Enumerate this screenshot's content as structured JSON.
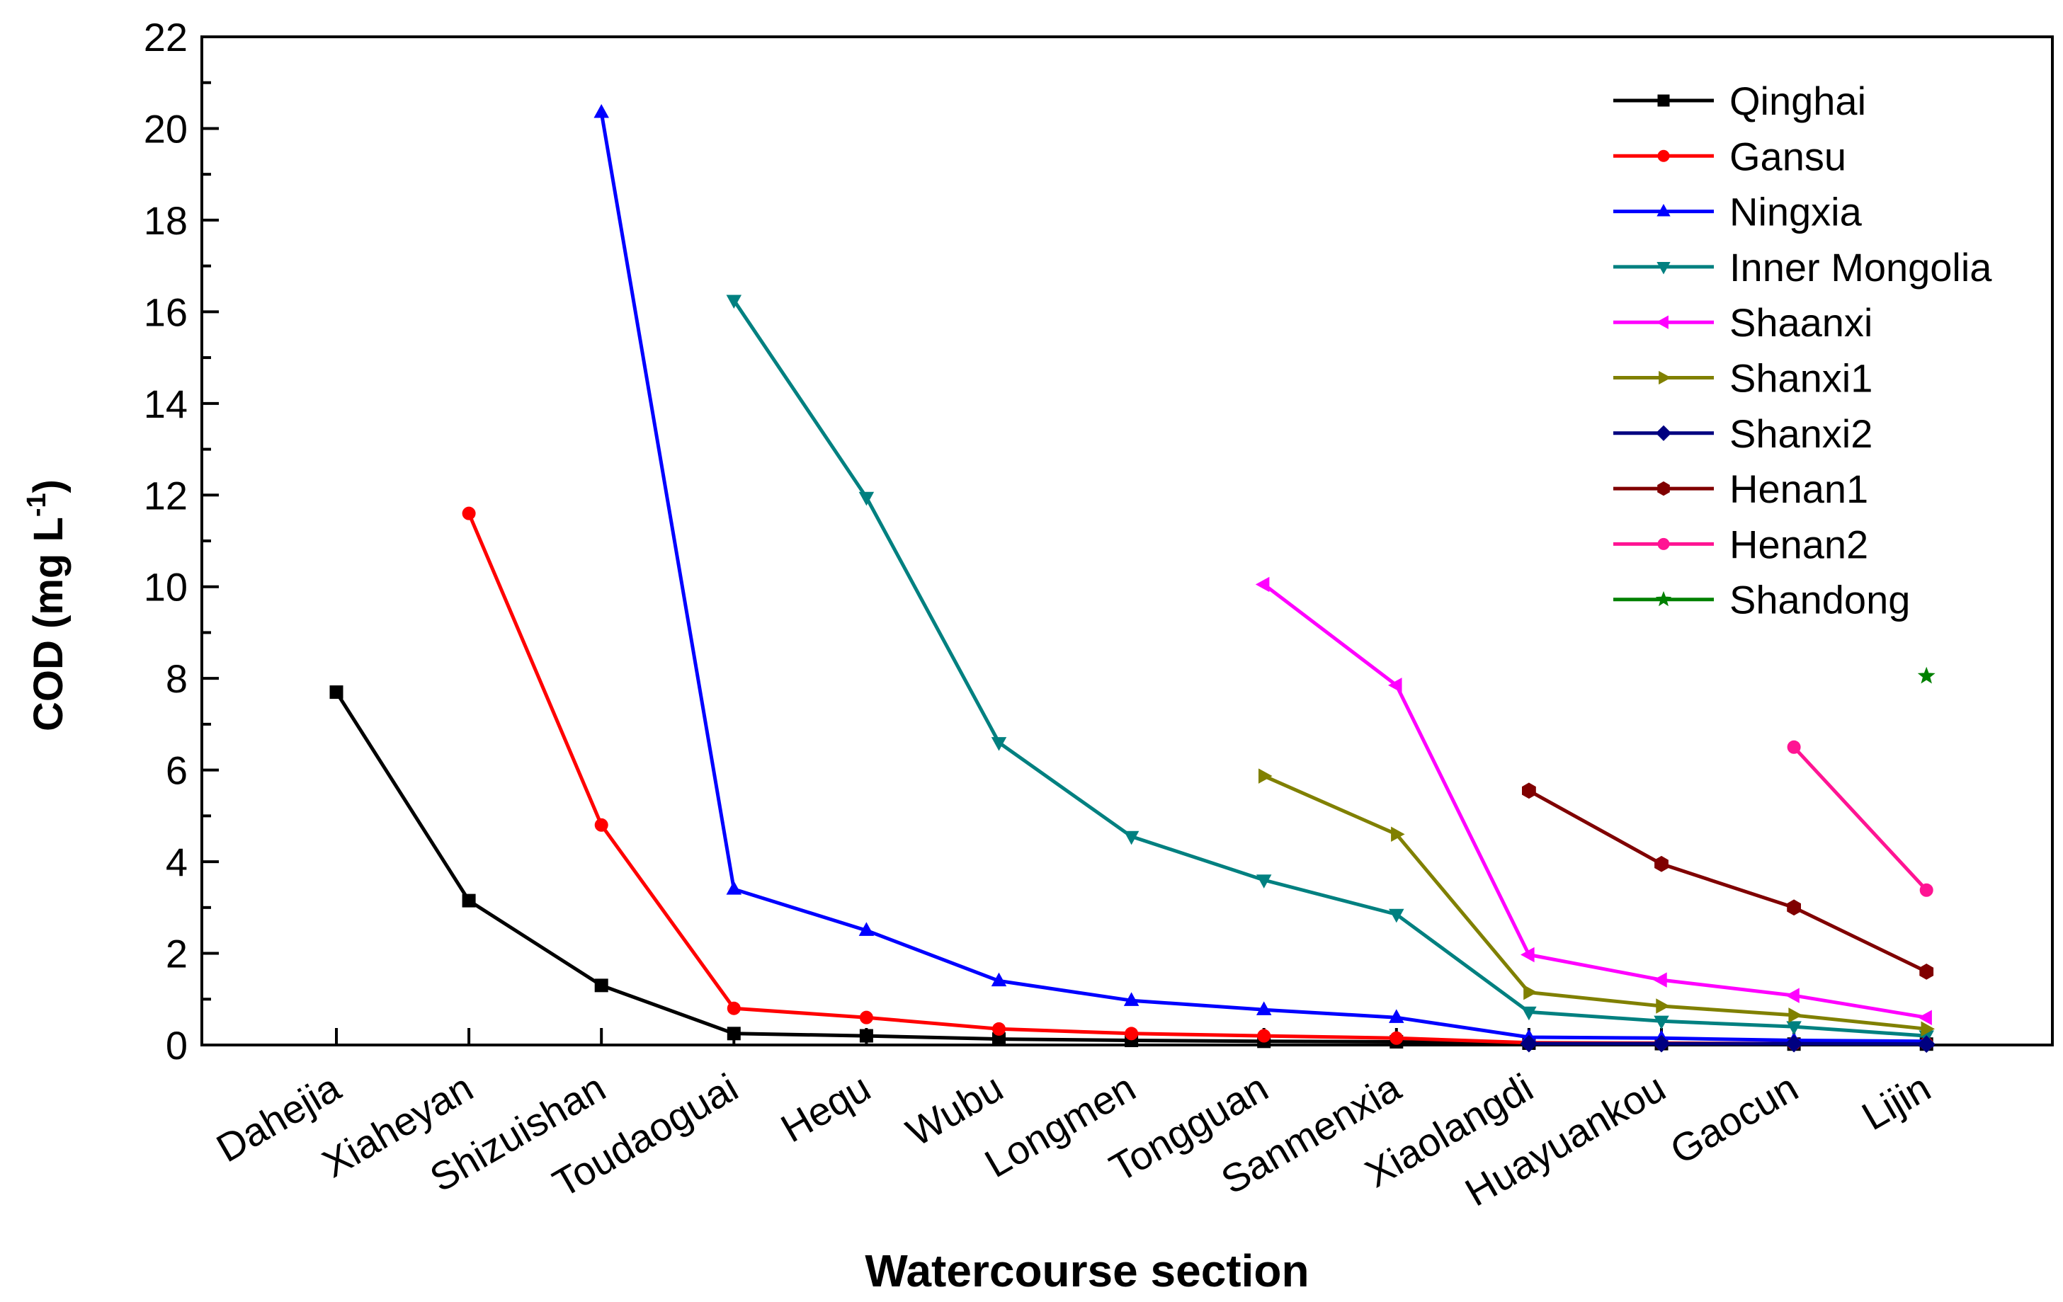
{
  "chart_data": {
    "type": "line",
    "title": "",
    "xlabel": "Watercourse section",
    "ylabel_main": "COD (mg L",
    "ylabel_sup": "-1",
    "ylabel_close": ")",
    "ylim": [
      0,
      22
    ],
    "yticks": [
      0,
      2,
      4,
      6,
      8,
      10,
      12,
      14,
      16,
      18,
      20,
      22
    ],
    "ytick_labels": [
      "0",
      "2",
      "4",
      "6",
      "8",
      "10",
      "12",
      "14",
      "16",
      "18",
      "20",
      "22"
    ],
    "grid": false,
    "legend_position": "top-right",
    "categories": [
      "Dahejia",
      "Xiaheyan",
      "Shizuishan",
      "Toudaoguai",
      "Hequ",
      "Wubu",
      "Longmen",
      "Tongguan",
      "Sanmenxia",
      "Xiaolangdi",
      "Huayuankou",
      "Gaocun",
      "Lijin"
    ],
    "series": [
      {
        "name": "Qinghai",
        "color": "#000000",
        "marker": "square",
        "values": [
          7.7,
          3.15,
          1.3,
          0.25,
          0.2,
          0.13,
          0.1,
          0.08,
          0.07,
          0.04,
          0.03,
          0.02,
          0.02
        ]
      },
      {
        "name": "Gansu",
        "color": "#ff0000",
        "marker": "circle",
        "values": [
          null,
          11.6,
          4.8,
          0.8,
          0.6,
          0.35,
          0.25,
          0.2,
          0.15,
          0.05,
          0.04,
          0.03,
          0.03
        ]
      },
      {
        "name": "Ningxia",
        "color": "#0000ff",
        "marker": "triangle-up",
        "values": [
          null,
          null,
          20.35,
          3.4,
          2.5,
          1.4,
          0.97,
          0.77,
          0.6,
          0.17,
          0.15,
          0.1,
          0.08
        ]
      },
      {
        "name": "Inner Mongolia",
        "color": "#008080",
        "marker": "triangle-down",
        "values": [
          null,
          null,
          null,
          16.25,
          11.95,
          6.6,
          4.55,
          3.6,
          2.85,
          0.72,
          0.52,
          0.4,
          0.2
        ]
      },
      {
        "name": "Shaanxi",
        "color": "#ff00ff",
        "marker": "triangle-left",
        "values": [
          null,
          null,
          null,
          null,
          null,
          null,
          null,
          10.05,
          7.85,
          1.97,
          1.42,
          1.08,
          0.6
        ]
      },
      {
        "name": "Shanxi1",
        "color": "#808000",
        "marker": "triangle-right",
        "values": [
          null,
          null,
          null,
          null,
          null,
          null,
          null,
          5.87,
          4.6,
          1.15,
          0.85,
          0.65,
          0.35
        ]
      },
      {
        "name": "Shanxi2",
        "color": "#000080",
        "marker": "diamond",
        "values": [
          null,
          null,
          null,
          null,
          null,
          null,
          null,
          null,
          null,
          0.03,
          0.03,
          0.03,
          0.02
        ]
      },
      {
        "name": "Henan1",
        "color": "#800000",
        "marker": "hexagon",
        "values": [
          null,
          null,
          null,
          null,
          null,
          null,
          null,
          null,
          null,
          5.55,
          3.95,
          3.0,
          1.6
        ]
      },
      {
        "name": "Henan2",
        "color": "#ff1493",
        "marker": "circle",
        "values": [
          null,
          null,
          null,
          null,
          null,
          null,
          null,
          null,
          null,
          null,
          null,
          6.5,
          3.38
        ]
      },
      {
        "name": "Shandong",
        "color": "#008000",
        "marker": "star",
        "values": [
          null,
          null,
          null,
          null,
          null,
          null,
          null,
          null,
          null,
          null,
          null,
          null,
          8.05
        ]
      }
    ]
  }
}
